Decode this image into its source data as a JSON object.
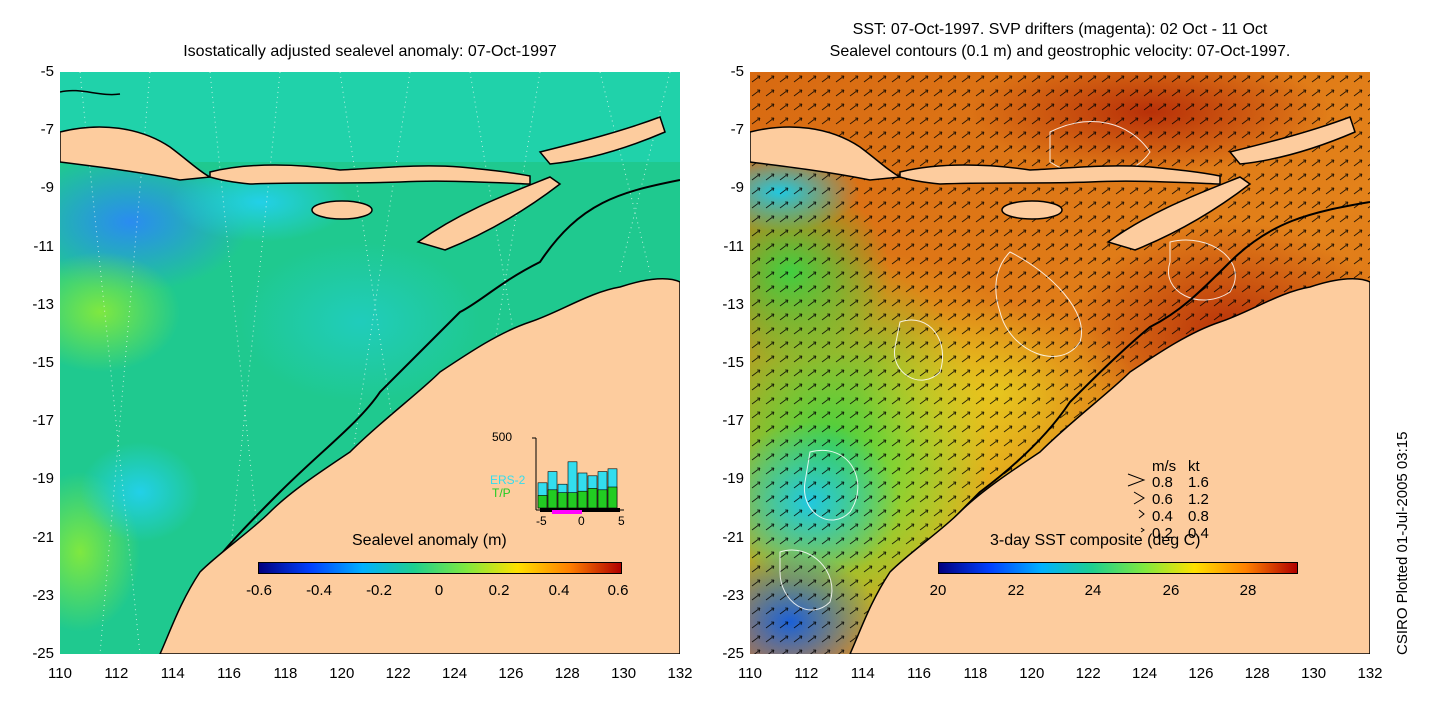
{
  "left_panel": {
    "title": "Isostatically adjusted sealevel anomaly: 07-Oct-1997",
    "colorbar": {
      "title": "Sealevel anomaly (m)",
      "tick_labels": [
        "-0.6",
        "-0.4",
        "-0.2",
        "0",
        "0.2",
        "0.4",
        "0.6"
      ],
      "range": [
        -0.6,
        0.6
      ]
    },
    "inset": {
      "ymax_label": "500",
      "series": [
        "ERS-2",
        "T/P"
      ],
      "series_colors": [
        "#33ddee",
        "#22cc22"
      ],
      "x_tick_labels": [
        "-5",
        "0",
        "5"
      ],
      "ers2_counts": [
        180,
        260,
        170,
        330,
        250,
        230,
        260,
        280
      ],
      "tp_counts": [
        90,
        130,
        110,
        110,
        120,
        140,
        130,
        150
      ],
      "ymax": 500
    }
  },
  "right_panel": {
    "title_line1": "SST: 07-Oct-1997. SVP drifters (magenta): 02 Oct - 11 Oct",
    "title_line2": "Sealevel contours (0.1 m) and geostrophic velocity: 07-Oct-1997.",
    "colorbar": {
      "title": "3-day SST composite (deg C)",
      "tick_labels": [
        "20",
        "22",
        "24",
        "26",
        "28"
      ],
      "range": [
        20,
        29.5
      ]
    },
    "velocity_legend": {
      "header_ms": "m/s",
      "header_kt": "kt",
      "rows": [
        {
          "ms": "0.8",
          "kt": "1.6"
        },
        {
          "ms": "0.6",
          "kt": "1.2"
        },
        {
          "ms": "0.4",
          "kt": "0.8"
        },
        {
          "ms": "0.2",
          "kt": "0.4"
        }
      ]
    }
  },
  "axes": {
    "y_tick_labels": [
      "-5",
      "-7",
      "-9",
      "-11",
      "-13",
      "-15",
      "-17",
      "-19",
      "-21",
      "-23",
      "-25"
    ],
    "x_tick_labels": [
      "110",
      "112",
      "114",
      "116",
      "118",
      "120",
      "122",
      "124",
      "126",
      "128",
      "130",
      "132"
    ],
    "lat_range": [
      -25,
      -5
    ],
    "lon_range": [
      110,
      132
    ]
  },
  "side_label": "CSIRO Plotted 01-Jul-2005 03:15",
  "colors": {
    "land": "#fdcc9e",
    "ocean_left": "#1fc98f",
    "ocean_right": "#e0801a"
  }
}
